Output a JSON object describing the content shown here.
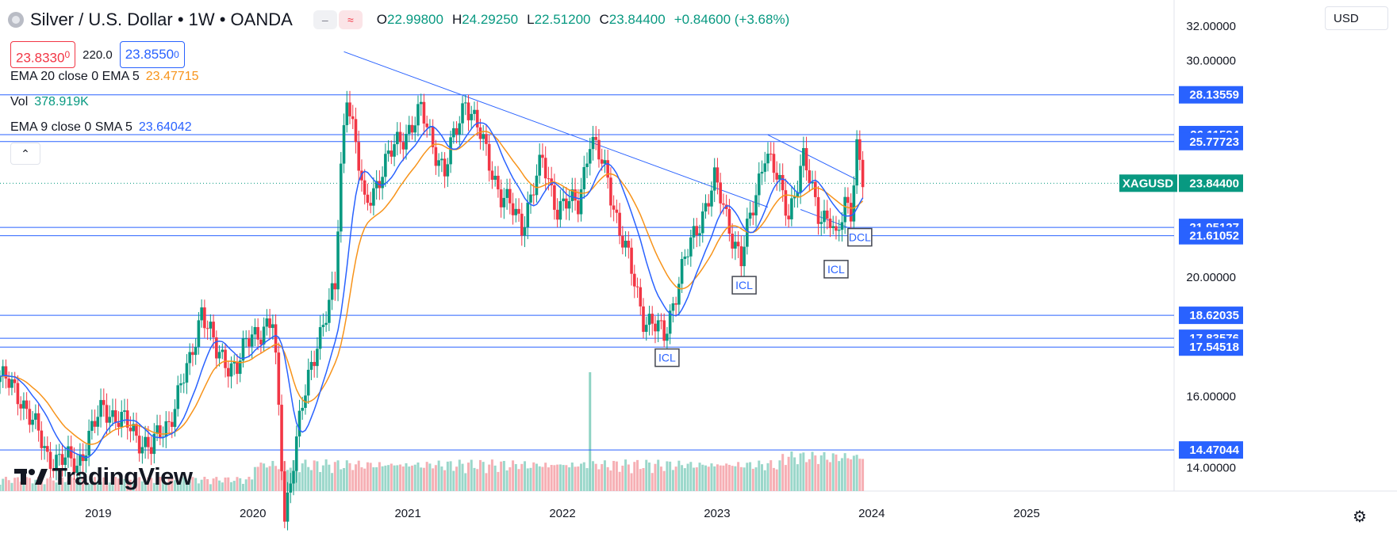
{
  "header": {
    "title": "Silver / U.S. Dollar • 1W • OANDA",
    "open_label": "O",
    "open": "22.99800",
    "high_label": "H",
    "high": "24.29250",
    "low_label": "L",
    "low": "22.51200",
    "close_label": "C",
    "close": "23.84400",
    "change": "+0.84600 (+3.68%)",
    "pill_left": "–",
    "pill_right": "≈"
  },
  "trade": {
    "sell": "23.8330",
    "sell_sup": "0",
    "spread": "220.0",
    "buy": "23.8550",
    "buy_sup": "0"
  },
  "indicators": [
    {
      "label": "EMA 20 close 0 EMA 5",
      "value": "23.47715",
      "color": "#f7931a"
    },
    {
      "label": "Vol",
      "value": "378.919K",
      "color": "#089981"
    },
    {
      "label": "EMA 9 close 0 SMA 5",
      "value": "23.64042",
      "color": "#2962ff"
    }
  ],
  "collapse_icon": "chevron-up-icon",
  "currency": "USD",
  "branding": "TradingView",
  "colors": {
    "up": "#089981",
    "down": "#f23645",
    "line": "#2962ff",
    "ema20": "#f7931a",
    "ema9": "#2962ff"
  },
  "chart_data": {
    "type": "candlestick",
    "symbol_badge": "XAGUSD",
    "last_price": "23.84400",
    "y_axis_ticks": [
      "32.00000",
      "30.00000",
      "20.00000",
      "16.00000",
      "14.00000"
    ],
    "y_ticks_values": [
      32,
      30,
      20,
      16,
      14
    ],
    "y_scale": "log",
    "y_range": [
      13.4,
      33.6
    ],
    "x_range": [
      "2018-05-14",
      "2025-12-15"
    ],
    "x_axis_ticks": [
      "2019",
      "2020",
      "2021",
      "2022",
      "2023",
      "2024",
      "2025"
    ],
    "x_ticks_dates": [
      "2019-01-01",
      "2020-01-01",
      "2021-01-01",
      "2022-01-01",
      "2023-01-01",
      "2024-01-01",
      "2025-01-01"
    ],
    "horizontal_levels": [
      "28.13559",
      "26.11584",
      "25.77723",
      "21.95127",
      "21.61052",
      "18.62035",
      "17.83576",
      "17.54518",
      "14.47044"
    ],
    "levels_values": [
      28.13559,
      26.11584,
      25.77723,
      21.95127,
      21.61052,
      18.62035,
      17.83576,
      17.54518,
      14.47044
    ],
    "annotations": [
      {
        "text": "ICL",
        "date": "2022-09-05",
        "price": 17.2
      },
      {
        "text": "ICL",
        "date": "2023-03-06",
        "price": 19.7
      },
      {
        "text": "DCL",
        "date": "2023-12-04",
        "price": 21.55
      },
      {
        "text": "ICL",
        "date": "2023-10-09",
        "price": 20.3
      }
    ],
    "trendlines": [
      {
        "from": [
          "2020-08-03",
          30.5
        ],
        "to": [
          "2023-05-01",
          22.8
        ]
      },
      {
        "from": [
          "2023-05-01",
          26.1
        ],
        "to": [
          "2023-11-27",
          24.0
        ]
      },
      {
        "from": [
          "2023-07-17",
          22.7
        ],
        "to": [
          "2023-11-13",
          21.9
        ]
      }
    ],
    "price_path": [
      [
        "2018-05-14",
        16.6
      ],
      [
        "2018-07-02",
        16.0
      ],
      [
        "2018-09-03",
        14.3
      ],
      [
        "2018-11-12",
        14.1
      ],
      [
        "2019-01-14",
        15.7
      ],
      [
        "2019-03-04",
        15.2
      ],
      [
        "2019-05-06",
        14.5
      ],
      [
        "2019-06-17",
        15.3
      ],
      [
        "2019-08-05",
        17.0
      ],
      [
        "2019-09-02",
        18.9
      ],
      [
        "2019-10-07",
        17.3
      ],
      [
        "2019-11-25",
        16.9
      ],
      [
        "2019-12-30",
        18.0
      ],
      [
        "2020-02-17",
        18.3
      ],
      [
        "2020-03-16",
        12.8
      ],
      [
        "2020-04-20",
        15.2
      ],
      [
        "2020-06-01",
        17.8
      ],
      [
        "2020-07-13",
        19.5
      ],
      [
        "2020-07-27",
        24.5
      ],
      [
        "2020-08-10",
        28.5
      ],
      [
        "2020-09-21",
        22.7
      ],
      [
        "2020-11-02",
        24.5
      ],
      [
        "2020-12-14",
        25.9
      ],
      [
        "2021-02-01",
        27.2
      ],
      [
        "2021-03-29",
        24.3
      ],
      [
        "2021-05-17",
        28.0
      ],
      [
        "2021-06-21",
        26.0
      ],
      [
        "2021-08-09",
        23.3
      ],
      [
        "2021-09-27",
        22.1
      ],
      [
        "2021-11-15",
        24.8
      ],
      [
        "2021-12-20",
        22.8
      ],
      [
        "2022-02-07",
        23.0
      ],
      [
        "2022-03-07",
        25.9
      ],
      [
        "2022-04-18",
        24.1
      ],
      [
        "2022-05-16",
        21.8
      ],
      [
        "2022-07-11",
        18.6
      ],
      [
        "2022-08-29",
        17.9
      ],
      [
        "2022-10-03",
        19.9
      ],
      [
        "2022-11-28",
        22.6
      ],
      [
        "2022-12-26",
        23.9
      ],
      [
        "2023-02-27",
        20.6
      ],
      [
        "2023-03-27",
        22.8
      ],
      [
        "2023-04-24",
        25.4
      ],
      [
        "2023-06-19",
        22.6
      ],
      [
        "2023-07-24",
        24.8
      ],
      [
        "2023-08-28",
        22.7
      ],
      [
        "2023-09-25",
        22.2
      ],
      [
        "2023-10-09",
        21.2
      ],
      [
        "2023-10-30",
        23.1
      ],
      [
        "2023-11-13",
        22.8
      ],
      [
        "2023-11-27",
        25.5
      ],
      [
        "2023-12-11",
        23.84
      ]
    ],
    "volume_spike_date": "2022-03-07"
  }
}
